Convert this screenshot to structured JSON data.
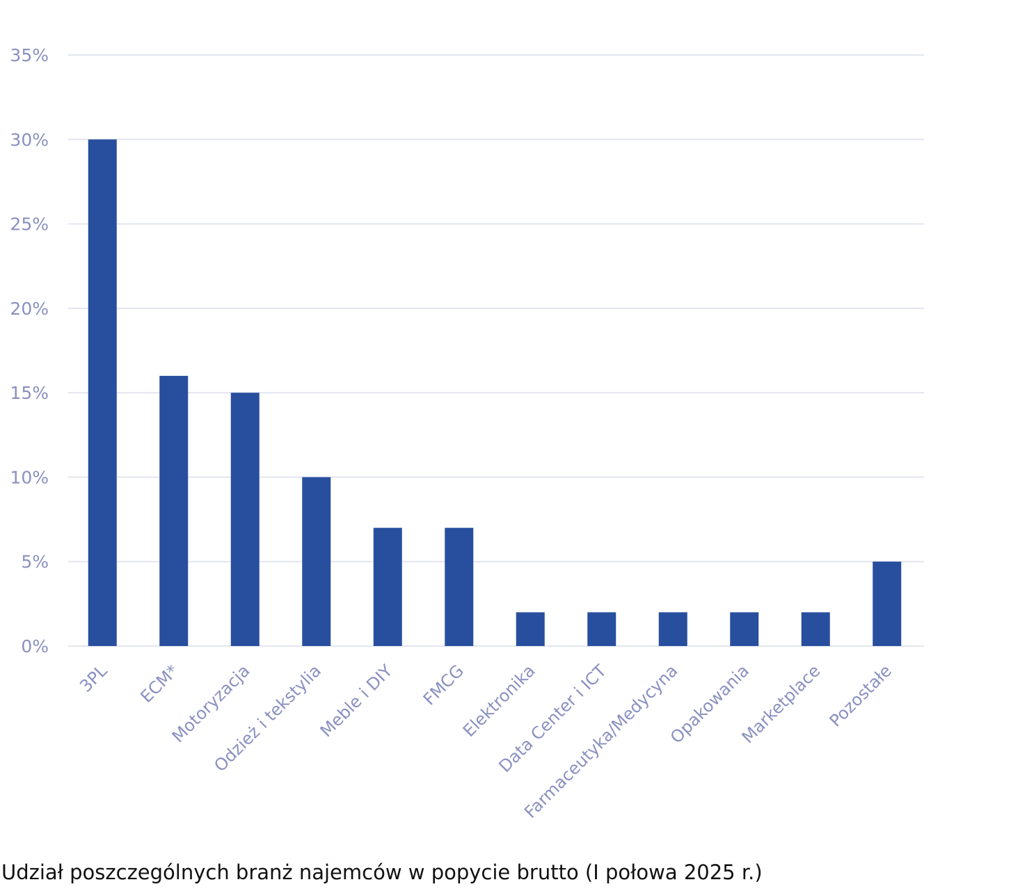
{
  "chart_data": {
    "type": "bar",
    "title": "Udział poszczególnych branż najemców w popycie brutto (I połowa 2025 r.)",
    "xlabel": "",
    "ylabel": "",
    "categories": [
      "3PL",
      "ECM*",
      "Motoryzacja",
      "Odzież i tekstylia",
      "Meble i DIY",
      "FMCG",
      "Elektronika",
      "Data Center i ICT",
      "Farmaceutyka/Medycyna",
      "Opakowania",
      "Marketplace",
      "Pozostałe"
    ],
    "values": [
      30,
      16,
      15,
      10,
      7,
      7,
      2,
      2,
      2,
      2,
      2,
      5
    ],
    "ylim": [
      0,
      35
    ],
    "yticks": [
      0,
      5,
      10,
      15,
      20,
      25,
      30,
      35
    ],
    "ytick_labels": [
      "0%",
      "5%",
      "10%",
      "15%",
      "20%",
      "25%",
      "30%",
      "35%"
    ],
    "grid": true,
    "legend": "none",
    "colors": {
      "bar": "#284f9e",
      "grid": "#e3e5ef",
      "axis_text": "#8a90c0"
    }
  }
}
